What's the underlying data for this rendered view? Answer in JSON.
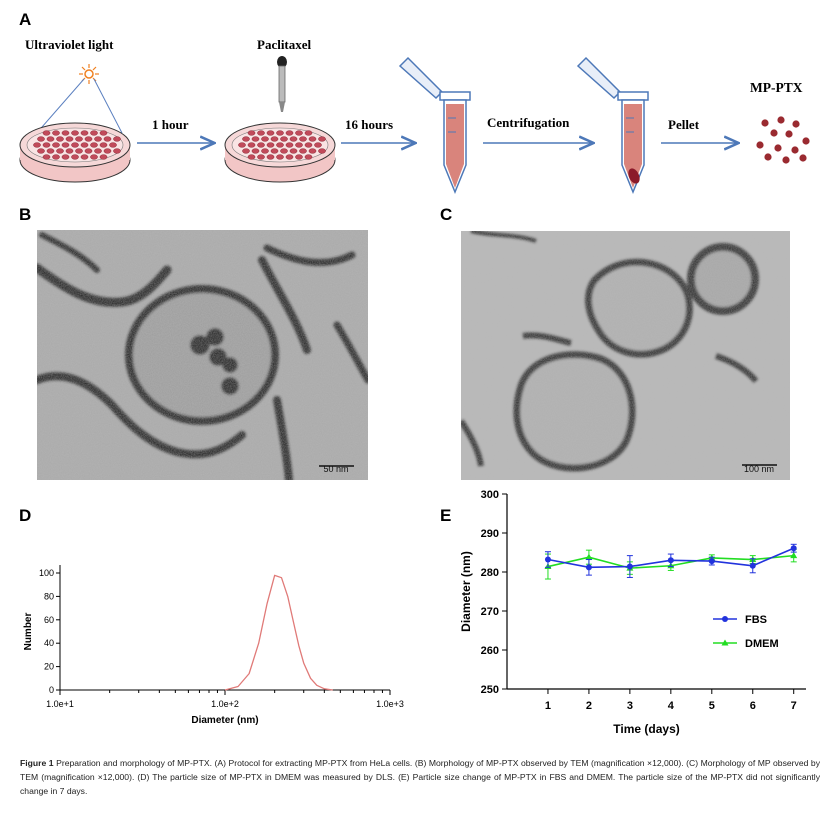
{
  "panels": {
    "a": "A",
    "b": "B",
    "c": "C",
    "d": "D",
    "e": "E"
  },
  "protocol": {
    "uv_label": "Ultraviolet light",
    "paclitaxel_label": "Paclitaxel",
    "step1": "1 hour",
    "step2": "16 hours",
    "step3": "Centrifugation",
    "step4": "Pellet",
    "product": "MP-PTX"
  },
  "tem": {
    "scale_b": "50 nm",
    "scale_c": "100 nm"
  },
  "chart_data": [
    {
      "type": "line",
      "panel": "D",
      "title": "",
      "xlabel": "Diameter (nm)",
      "ylabel": "Number",
      "xscale": "log",
      "xlim": [
        10,
        1000
      ],
      "ylim": [
        0,
        100
      ],
      "x_tick_labels": [
        "1.0e+1",
        "1.0e+2",
        "1.0e+3"
      ],
      "y_ticks": [
        0,
        20,
        40,
        60,
        80,
        100
      ],
      "color": "#e07a78",
      "series": [
        {
          "x": [
            100,
            120,
            140,
            160,
            180,
            200,
            220,
            240,
            260,
            280,
            300,
            330,
            360,
            400,
            450
          ],
          "y": [
            0,
            3,
            14,
            40,
            74,
            98,
            96,
            80,
            58,
            38,
            23,
            10,
            4,
            1,
            0
          ]
        }
      ]
    },
    {
      "type": "line",
      "panel": "E",
      "title": "",
      "xlabel": "Time (days)",
      "ylabel": "Diameter (nm)",
      "xlim": [
        0,
        7.3
      ],
      "ylim": [
        250,
        300
      ],
      "x_ticks": [
        1,
        2,
        3,
        4,
        5,
        6,
        7
      ],
      "y_ticks": [
        250,
        260,
        270,
        280,
        290,
        300
      ],
      "legend_position": "right",
      "series": [
        {
          "name": "FBS",
          "color": "#2233dd",
          "marker": "circle",
          "x": [
            1,
            2,
            3,
            4,
            5,
            6,
            7
          ],
          "y": [
            283.2,
            281.2,
            281.4,
            283.0,
            282.8,
            281.6,
            286.1
          ],
          "err": [
            2.0,
            2.0,
            2.8,
            1.6,
            1.0,
            1.8,
            1.0
          ]
        },
        {
          "name": "DMEM",
          "color": "#22dd22",
          "marker": "triangle",
          "x": [
            1,
            2,
            3,
            4,
            5,
            6,
            7
          ],
          "y": [
            281.4,
            283.8,
            281.0,
            281.6,
            283.6,
            283.2,
            284.2
          ],
          "err": [
            3.2,
            1.8,
            1.6,
            1.2,
            0.8,
            1.0,
            1.6
          ]
        }
      ]
    }
  ],
  "caption": {
    "label": "Figure 1",
    "text": "Preparation and morphology of MP-PTX. (A) Protocol for extracting MP-PTX from HeLa cells. (B) Morphology of MP-PTX observed by TEM (magnification ×12,000). (C) Morphology of MP observed by TEM (magnification ×12,000). (D) The particle size of MP-PTX in DMEM was measured by DLS. (E) Particle size change of MP-PTX in FBS and DMEM. The particle size of the MP-PTX did not significantly change in 7 days."
  }
}
